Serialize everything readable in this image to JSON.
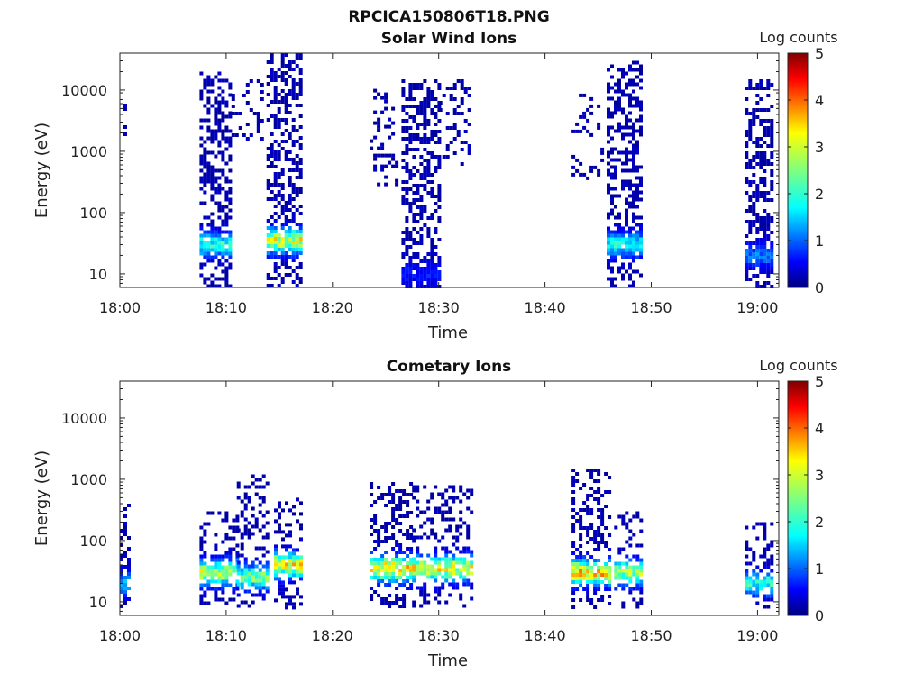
{
  "figure_title": "RPCICA150806T18.PNG",
  "chart_data": [
    {
      "type": "heatmap",
      "title": "Solar Wind Ions",
      "xlabel": "Time",
      "ylabel": "Energy (eV)",
      "x_ticks": [
        "18:00",
        "18:10",
        "18:20",
        "18:30",
        "18:40",
        "18:50",
        "19:00"
      ],
      "y_ticks": [
        "10",
        "100",
        "1000",
        "10000"
      ],
      "y_scale": "log",
      "ylim": [
        6,
        40000
      ],
      "xlim": [
        "18:00",
        "19:02"
      ],
      "colorbar": {
        "label": "Log counts",
        "range": [
          0,
          5
        ],
        "ticks": [
          "0",
          "1",
          "2",
          "3",
          "4",
          "5"
        ]
      },
      "regions": [
        {
          "t_start": 0.0,
          "t_end": 0.8,
          "e_min": 600,
          "e_max": 9000,
          "density": 0.12,
          "peak_energy": null,
          "peak_level": 0
        },
        {
          "t_start": 7.5,
          "t_end": 10.5,
          "e_min": 6,
          "e_max": 20000,
          "density": 0.45,
          "peak_energy": 30,
          "peak_level": 2.2
        },
        {
          "t_start": 10.5,
          "t_end": 13.5,
          "e_min": 1500,
          "e_max": 15000,
          "density": 0.25,
          "peak_energy": null,
          "peak_level": 0
        },
        {
          "t_start": 13.8,
          "t_end": 17.0,
          "e_min": 6,
          "e_max": 40000,
          "density": 0.45,
          "peak_energy": 35,
          "peak_level": 3.3
        },
        {
          "t_start": 23.5,
          "t_end": 26.0,
          "e_min": 300,
          "e_max": 12000,
          "density": 0.2,
          "peak_energy": null,
          "peak_level": 0
        },
        {
          "t_start": 26.5,
          "t_end": 30.0,
          "e_min": 6,
          "e_max": 15000,
          "density": 0.45,
          "peak_energy": 10,
          "peak_level": 0.6
        },
        {
          "t_start": 30.0,
          "t_end": 33.0,
          "e_min": 600,
          "e_max": 15000,
          "density": 0.22,
          "peak_energy": null,
          "peak_level": 0
        },
        {
          "t_start": 42.5,
          "t_end": 45.5,
          "e_min": 300,
          "e_max": 10000,
          "density": 0.15,
          "peak_energy": null,
          "peak_level": 0
        },
        {
          "t_start": 45.8,
          "t_end": 49.0,
          "e_min": 6,
          "e_max": 30000,
          "density": 0.45,
          "peak_energy": 30,
          "peak_level": 2.0
        },
        {
          "t_start": 58.8,
          "t_end": 61.5,
          "e_min": 6,
          "e_max": 15000,
          "density": 0.45,
          "peak_energy": 20,
          "peak_level": 1.2
        }
      ]
    },
    {
      "type": "heatmap",
      "title": "Cometary Ions",
      "xlabel": "Time",
      "ylabel": "Energy (eV)",
      "x_ticks": [
        "18:00",
        "18:10",
        "18:20",
        "18:30",
        "18:40",
        "18:50",
        "19:00"
      ],
      "y_ticks": [
        "10",
        "100",
        "1000",
        "10000"
      ],
      "y_scale": "log",
      "ylim": [
        6,
        40000
      ],
      "xlim": [
        "18:00",
        "19:02"
      ],
      "colorbar": {
        "label": "Log counts",
        "range": [
          0,
          5
        ],
        "ticks": [
          "0",
          "1",
          "2",
          "3",
          "4",
          "5"
        ]
      },
      "regions": [
        {
          "t_start": 0.0,
          "t_end": 1.0,
          "e_min": 8,
          "e_max": 600,
          "density": 0.25,
          "peak_energy": 20,
          "peak_level": 1.5
        },
        {
          "t_start": 7.5,
          "t_end": 11.0,
          "e_min": 8,
          "e_max": 300,
          "density": 0.35,
          "peak_energy": 30,
          "peak_level": 3.2
        },
        {
          "t_start": 11.0,
          "t_end": 14.0,
          "e_min": 8,
          "e_max": 1200,
          "density": 0.3,
          "peak_energy": 25,
          "peak_level": 2.7
        },
        {
          "t_start": 14.5,
          "t_end": 17.0,
          "e_min": 8,
          "e_max": 500,
          "density": 0.35,
          "peak_energy": 40,
          "peak_level": 3.6
        },
        {
          "t_start": 23.5,
          "t_end": 27.5,
          "e_min": 8,
          "e_max": 900,
          "density": 0.35,
          "peak_energy": 35,
          "peak_level": 3.7
        },
        {
          "t_start": 27.5,
          "t_end": 33.0,
          "e_min": 8,
          "e_max": 800,
          "density": 0.32,
          "peak_energy": 35,
          "peak_level": 3.4
        },
        {
          "t_start": 42.5,
          "t_end": 46.0,
          "e_min": 8,
          "e_max": 1500,
          "density": 0.35,
          "peak_energy": 30,
          "peak_level": 3.8
        },
        {
          "t_start": 46.5,
          "t_end": 49.0,
          "e_min": 8,
          "e_max": 300,
          "density": 0.3,
          "peak_energy": 30,
          "peak_level": 3.0
        },
        {
          "t_start": 58.8,
          "t_end": 61.5,
          "e_min": 8,
          "e_max": 200,
          "density": 0.3,
          "peak_energy": 20,
          "peak_level": 2.2
        }
      ]
    }
  ]
}
